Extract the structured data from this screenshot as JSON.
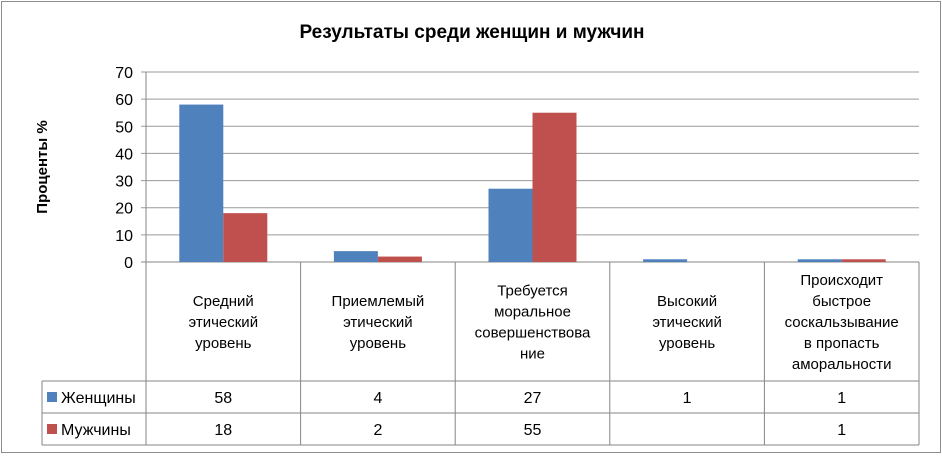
{
  "chart_data": {
    "type": "bar",
    "title": "Результаты среди женщин и мужчин",
    "ylabel": "Проценты %",
    "ylim": [
      0,
      70
    ],
    "yticks": [
      0,
      10,
      20,
      30,
      40,
      50,
      60,
      70
    ],
    "grid": true,
    "legend": "data-table",
    "categories": [
      [
        "Средний",
        "этический",
        "уровень"
      ],
      [
        "Приемлемый",
        "этический",
        "уровень"
      ],
      [
        "Требуется",
        "моральное",
        "совершенствова",
        "ние"
      ],
      [
        "Высокий",
        "этический",
        "уровень"
      ],
      [
        "Происходит",
        "быстрое",
        "соскальзывание",
        "в пропасть",
        "аморальности"
      ]
    ],
    "series": [
      {
        "name": "Женщины",
        "color": "#4f81bd",
        "values": [
          58,
          4,
          27,
          1,
          1
        ],
        "labels": [
          "58",
          "4",
          "27",
          "1",
          "1"
        ]
      },
      {
        "name": "Мужчины",
        "color": "#c0504d",
        "values": [
          18,
          2,
          55,
          null,
          1
        ],
        "labels": [
          "18",
          "2",
          "55",
          "",
          "1"
        ]
      }
    ]
  }
}
